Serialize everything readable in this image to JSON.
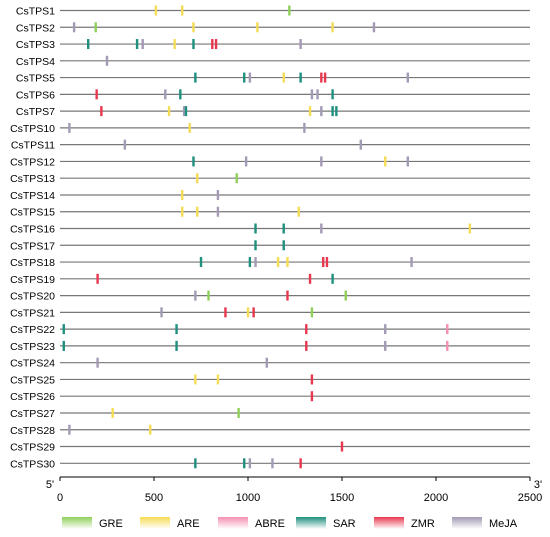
{
  "axis": {
    "start_label": "5'",
    "end_label": "3'",
    "min": 0,
    "max": 2500,
    "ticks": [
      0,
      500,
      1000,
      1500,
      2000,
      2500
    ]
  },
  "element_colors": {
    "GRE": "#8fcf5a",
    "ARE": "#f5dc55",
    "ABRE": "#f48fb1",
    "SAR": "#1f8f7e",
    "ZMR": "#e8384f",
    "MeJA": "#a39ab5"
  },
  "legend": [
    {
      "key": "GRE",
      "label": "GRE"
    },
    {
      "key": "ARE",
      "label": "ARE"
    },
    {
      "key": "ABRE",
      "label": "ABRE"
    },
    {
      "key": "SAR",
      "label": "SAR"
    },
    {
      "key": "ZMR",
      "label": "ZMR"
    },
    {
      "key": "MeJA",
      "label": "MeJA"
    }
  ],
  "genes": [
    {
      "name": "CsTPS1",
      "elements": [
        {
          "type": "ARE",
          "pos": 510
        },
        {
          "type": "ARE",
          "pos": 650
        },
        {
          "type": "GRE",
          "pos": 1220
        }
      ]
    },
    {
      "name": "CsTPS2",
      "elements": [
        {
          "type": "MeJA",
          "pos": 75
        },
        {
          "type": "GRE",
          "pos": 190
        },
        {
          "type": "ARE",
          "pos": 710
        },
        {
          "type": "ARE",
          "pos": 1050
        },
        {
          "type": "ARE",
          "pos": 1450
        },
        {
          "type": "MeJA",
          "pos": 1670
        }
      ]
    },
    {
      "name": "CsTPS3",
      "elements": [
        {
          "type": "SAR",
          "pos": 150
        },
        {
          "type": "SAR",
          "pos": 410
        },
        {
          "type": "MeJA",
          "pos": 440
        },
        {
          "type": "ARE",
          "pos": 610
        },
        {
          "type": "SAR",
          "pos": 710
        },
        {
          "type": "ZMR",
          "pos": 810
        },
        {
          "type": "ZMR",
          "pos": 830
        },
        {
          "type": "MeJA",
          "pos": 1280
        }
      ]
    },
    {
      "name": "CsTPS4",
      "elements": [
        {
          "type": "MeJA",
          "pos": 250
        }
      ]
    },
    {
      "name": "CsTPS5",
      "elements": [
        {
          "type": "SAR",
          "pos": 720
        },
        {
          "type": "SAR",
          "pos": 980
        },
        {
          "type": "MeJA",
          "pos": 1010
        },
        {
          "type": "ARE",
          "pos": 1190
        },
        {
          "type": "SAR",
          "pos": 1280
        },
        {
          "type": "ZMR",
          "pos": 1390
        },
        {
          "type": "ZMR",
          "pos": 1410
        },
        {
          "type": "MeJA",
          "pos": 1850
        }
      ]
    },
    {
      "name": "CsTPS6",
      "elements": [
        {
          "type": "ZMR",
          "pos": 195
        },
        {
          "type": "MeJA",
          "pos": 560
        },
        {
          "type": "SAR",
          "pos": 640
        },
        {
          "type": "MeJA",
          "pos": 1340
        },
        {
          "type": "MeJA",
          "pos": 1370
        },
        {
          "type": "SAR",
          "pos": 1450
        }
      ]
    },
    {
      "name": "CsTPS7",
      "elements": [
        {
          "type": "ZMR",
          "pos": 220
        },
        {
          "type": "ARE",
          "pos": 580
        },
        {
          "type": "MeJA",
          "pos": 660
        },
        {
          "type": "SAR",
          "pos": 670
        },
        {
          "type": "ARE",
          "pos": 1330
        },
        {
          "type": "MeJA",
          "pos": 1390
        },
        {
          "type": "SAR",
          "pos": 1450
        },
        {
          "type": "SAR",
          "pos": 1470
        }
      ]
    },
    {
      "name": "CsTPS10",
      "elements": [
        {
          "type": "MeJA",
          "pos": 50
        },
        {
          "type": "ARE",
          "pos": 690
        },
        {
          "type": "MeJA",
          "pos": 1300
        }
      ]
    },
    {
      "name": "CsTPS11",
      "elements": [
        {
          "type": "MeJA",
          "pos": 345
        },
        {
          "type": "MeJA",
          "pos": 1600
        }
      ]
    },
    {
      "name": "CsTPS12",
      "elements": [
        {
          "type": "SAR",
          "pos": 710
        },
        {
          "type": "MeJA",
          "pos": 990
        },
        {
          "type": "MeJA",
          "pos": 1390
        },
        {
          "type": "ARE",
          "pos": 1730
        },
        {
          "type": "MeJA",
          "pos": 1850
        }
      ]
    },
    {
      "name": "CsTPS13",
      "elements": [
        {
          "type": "ARE",
          "pos": 730
        },
        {
          "type": "GRE",
          "pos": 940
        }
      ]
    },
    {
      "name": "CsTPS14",
      "elements": [
        {
          "type": "ARE",
          "pos": 650
        },
        {
          "type": "MeJA",
          "pos": 840
        }
      ]
    },
    {
      "name": "CsTPS15",
      "elements": [
        {
          "type": "ARE",
          "pos": 650
        },
        {
          "type": "ARE",
          "pos": 730
        },
        {
          "type": "MeJA",
          "pos": 840
        },
        {
          "type": "ARE",
          "pos": 1270
        }
      ]
    },
    {
      "name": "CsTPS16",
      "elements": [
        {
          "type": "SAR",
          "pos": 1040
        },
        {
          "type": "SAR",
          "pos": 1190
        },
        {
          "type": "MeJA",
          "pos": 1390
        },
        {
          "type": "ARE",
          "pos": 2180
        }
      ]
    },
    {
      "name": "CsTPS17",
      "elements": [
        {
          "type": "SAR",
          "pos": 1040
        },
        {
          "type": "SAR",
          "pos": 1190
        }
      ]
    },
    {
      "name": "CsTPS18",
      "elements": [
        {
          "type": "SAR",
          "pos": 750
        },
        {
          "type": "SAR",
          "pos": 1010
        },
        {
          "type": "MeJA",
          "pos": 1040
        },
        {
          "type": "ARE",
          "pos": 1160
        },
        {
          "type": "ARE",
          "pos": 1210
        },
        {
          "type": "ZMR",
          "pos": 1400
        },
        {
          "type": "ZMR",
          "pos": 1420
        },
        {
          "type": "MeJA",
          "pos": 1870
        }
      ]
    },
    {
      "name": "CsTPS19",
      "elements": [
        {
          "type": "ZMR",
          "pos": 200
        },
        {
          "type": "ZMR",
          "pos": 1330
        },
        {
          "type": "SAR",
          "pos": 1450
        }
      ]
    },
    {
      "name": "CsTPS20",
      "elements": [
        {
          "type": "MeJA",
          "pos": 720
        },
        {
          "type": "GRE",
          "pos": 790
        },
        {
          "type": "ZMR",
          "pos": 1210
        },
        {
          "type": "GRE",
          "pos": 1520
        }
      ]
    },
    {
      "name": "CsTPS21",
      "elements": [
        {
          "type": "MeJA",
          "pos": 540
        },
        {
          "type": "ZMR",
          "pos": 880
        },
        {
          "type": "ARE",
          "pos": 1000
        },
        {
          "type": "ZMR",
          "pos": 1030
        },
        {
          "type": "GRE",
          "pos": 1340
        }
      ]
    },
    {
      "name": "CsTPS22",
      "elements": [
        {
          "type": "SAR",
          "pos": 20
        },
        {
          "type": "SAR",
          "pos": 620
        },
        {
          "type": "ZMR",
          "pos": 1310
        },
        {
          "type": "MeJA",
          "pos": 1730
        },
        {
          "type": "ABRE",
          "pos": 2060
        }
      ]
    },
    {
      "name": "CsTPS23",
      "elements": [
        {
          "type": "SAR",
          "pos": 20
        },
        {
          "type": "SAR",
          "pos": 620
        },
        {
          "type": "ZMR",
          "pos": 1310
        },
        {
          "type": "MeJA",
          "pos": 1730
        },
        {
          "type": "ABRE",
          "pos": 2060
        }
      ]
    },
    {
      "name": "CsTPS24",
      "elements": [
        {
          "type": "MeJA",
          "pos": 200
        },
        {
          "type": "MeJA",
          "pos": 1100
        }
      ]
    },
    {
      "name": "CsTPS25",
      "elements": [
        {
          "type": "ARE",
          "pos": 720
        },
        {
          "type": "ARE",
          "pos": 840
        },
        {
          "type": "ZMR",
          "pos": 1340
        }
      ]
    },
    {
      "name": "CsTPS26",
      "elements": [
        {
          "type": "ZMR",
          "pos": 1340
        }
      ]
    },
    {
      "name": "CsTPS27",
      "elements": [
        {
          "type": "ARE",
          "pos": 280
        },
        {
          "type": "GRE",
          "pos": 950
        }
      ]
    },
    {
      "name": "CsTPS28",
      "elements": [
        {
          "type": "MeJA",
          "pos": 50
        },
        {
          "type": "ARE",
          "pos": 480
        }
      ]
    },
    {
      "name": "CsTPS29",
      "elements": [
        {
          "type": "ZMR",
          "pos": 1500
        }
      ]
    },
    {
      "name": "CsTPS30",
      "elements": [
        {
          "type": "SAR",
          "pos": 720
        },
        {
          "type": "SAR",
          "pos": 980
        },
        {
          "type": "MeJA",
          "pos": 1010
        },
        {
          "type": "MeJA",
          "pos": 1130
        },
        {
          "type": "ZMR",
          "pos": 1280
        }
      ]
    }
  ]
}
